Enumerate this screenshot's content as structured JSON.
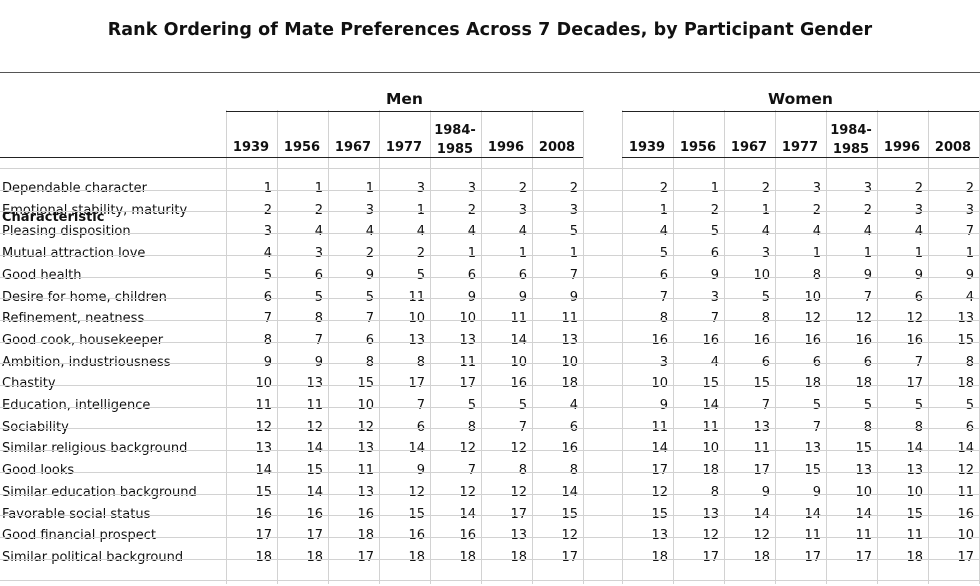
{
  "title": "Rank Ordering of Mate Preferences Across 7 Decades, by Participant Gender",
  "column_header": "Characteristic",
  "groups": [
    "Men",
    "Women"
  ],
  "years": [
    "1939",
    "1956",
    "1967",
    "1977",
    "1984-1985",
    "1996",
    "2008"
  ],
  "years_display": [
    [
      "1939"
    ],
    [
      "1956"
    ],
    [
      "1967"
    ],
    [
      "1977"
    ],
    [
      "1984-",
      "1985"
    ],
    [
      "1996"
    ],
    [
      "2008"
    ]
  ],
  "rows": [
    {
      "name": "Dependable character",
      "men": [
        1,
        1,
        1,
        3,
        3,
        2,
        2
      ],
      "women": [
        2,
        1,
        2,
        3,
        3,
        2,
        2
      ]
    },
    {
      "name": "Emotional stability, maturity",
      "men": [
        2,
        2,
        3,
        1,
        2,
        3,
        3
      ],
      "women": [
        1,
        2,
        1,
        2,
        2,
        3,
        3
      ]
    },
    {
      "name": "Pleasing disposition",
      "men": [
        3,
        4,
        4,
        4,
        4,
        4,
        5
      ],
      "women": [
        4,
        5,
        4,
        4,
        4,
        4,
        7
      ]
    },
    {
      "name": "Mutual attraction love",
      "men": [
        4,
        3,
        2,
        2,
        1,
        1,
        1
      ],
      "women": [
        5,
        6,
        3,
        1,
        1,
        1,
        1
      ]
    },
    {
      "name": "Good health",
      "men": [
        5,
        6,
        9,
        5,
        6,
        6,
        7
      ],
      "women": [
        6,
        9,
        10,
        8,
        9,
        9,
        9
      ]
    },
    {
      "name": "Desire for home, children",
      "men": [
        6,
        5,
        5,
        11,
        9,
        9,
        9
      ],
      "women": [
        7,
        3,
        5,
        10,
        7,
        6,
        4
      ]
    },
    {
      "name": "Refinement, neatness",
      "men": [
        7,
        8,
        7,
        10,
        10,
        11,
        11
      ],
      "women": [
        8,
        7,
        8,
        12,
        12,
        12,
        13
      ]
    },
    {
      "name": "Good cook, housekeeper",
      "men": [
        8,
        7,
        6,
        13,
        13,
        14,
        13
      ],
      "women": [
        16,
        16,
        16,
        16,
        16,
        16,
        15
      ]
    },
    {
      "name": "Ambition, industriousness",
      "men": [
        9,
        9,
        8,
        8,
        11,
        10,
        10
      ],
      "women": [
        3,
        4,
        6,
        6,
        6,
        7,
        8
      ]
    },
    {
      "name": "Chastity",
      "men": [
        10,
        13,
        15,
        17,
        17,
        16,
        18
      ],
      "women": [
        10,
        15,
        15,
        18,
        18,
        17,
        18
      ]
    },
    {
      "name": "Education, intelligence",
      "men": [
        11,
        11,
        10,
        7,
        5,
        5,
        4
      ],
      "women": [
        9,
        14,
        7,
        5,
        5,
        5,
        5
      ]
    },
    {
      "name": "Sociability",
      "men": [
        12,
        12,
        12,
        6,
        8,
        7,
        6
      ],
      "women": [
        11,
        11,
        13,
        7,
        8,
        8,
        6
      ]
    },
    {
      "name": "Similar religious background",
      "men": [
        13,
        14,
        13,
        14,
        12,
        12,
        16
      ],
      "women": [
        14,
        10,
        11,
        13,
        15,
        14,
        14
      ]
    },
    {
      "name": "Good looks",
      "men": [
        14,
        15,
        11,
        9,
        7,
        8,
        8
      ],
      "women": [
        17,
        18,
        17,
        15,
        13,
        13,
        12
      ]
    },
    {
      "name": "Similar education background",
      "men": [
        15,
        14,
        13,
        12,
        12,
        12,
        14
      ],
      "women": [
        12,
        8,
        9,
        9,
        10,
        10,
        11
      ]
    },
    {
      "name": "Favorable social status",
      "men": [
        16,
        16,
        16,
        15,
        14,
        17,
        15
      ],
      "women": [
        15,
        13,
        14,
        14,
        14,
        15,
        16
      ]
    },
    {
      "name": "Good financial prospect",
      "men": [
        17,
        17,
        18,
        16,
        16,
        13,
        12
      ],
      "women": [
        13,
        12,
        12,
        11,
        11,
        11,
        10
      ]
    },
    {
      "name": "Similar political background",
      "men": [
        18,
        18,
        17,
        18,
        18,
        18,
        17
      ],
      "women": [
        18,
        17,
        18,
        17,
        17,
        18,
        17
      ]
    }
  ]
}
